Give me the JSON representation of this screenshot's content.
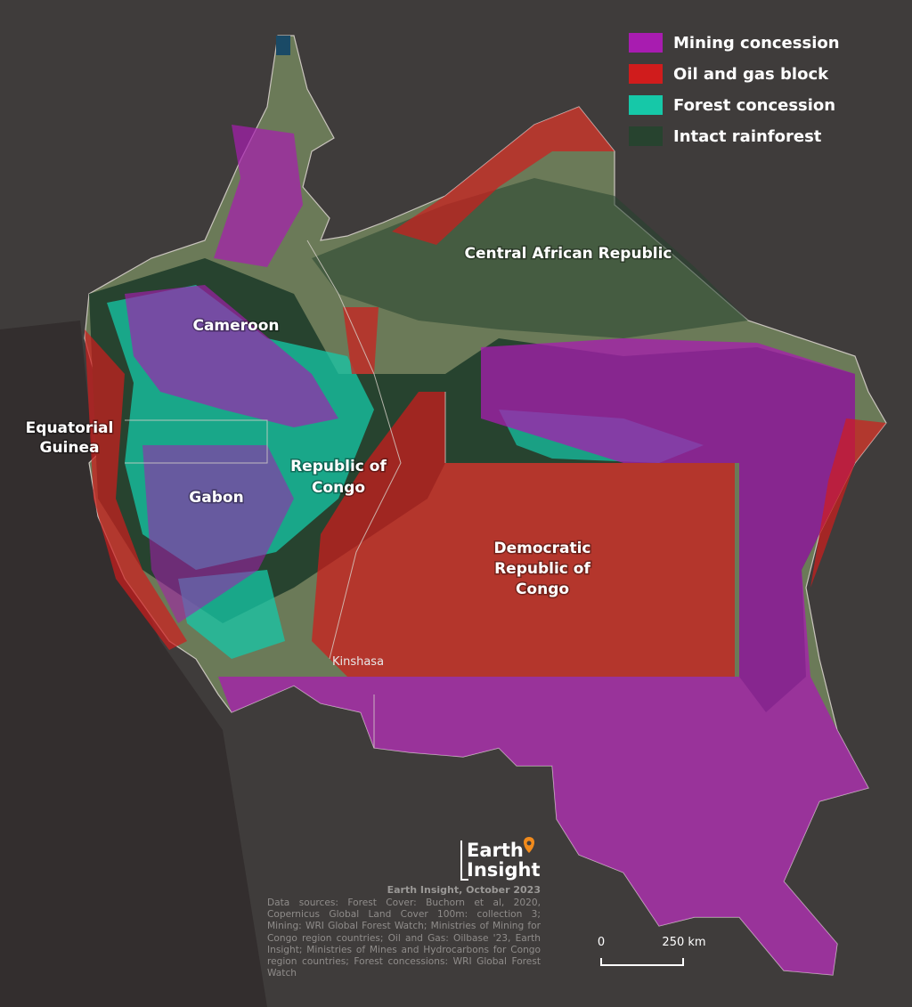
{
  "legend": [
    {
      "label": "Mining concession",
      "color": "#a81cb0"
    },
    {
      "label": "Oil and gas block",
      "color": "#d01c1c"
    },
    {
      "label": "Forest concession",
      "color": "#16c8a8"
    },
    {
      "label": "Intact rainforest",
      "color": "#27432f"
    }
  ],
  "countries": [
    {
      "lines": [
        "Central African Republic"
      ]
    },
    {
      "lines": [
        "Cameroon"
      ]
    },
    {
      "lines": [
        "Equatorial",
        "Guinea"
      ]
    },
    {
      "lines": [
        "Gabon"
      ]
    },
    {
      "lines": [
        "Republic of",
        "Congo"
      ]
    },
    {
      "lines": [
        "Democratic",
        "Republic of",
        "Congo"
      ]
    }
  ],
  "city": "Kinshasa",
  "logo": {
    "lines": [
      "Earth",
      "Insight"
    ]
  },
  "credit": "Earth Insight, October 2023",
  "sources": "Data sources: Forest Cover: Buchorn et al, 2020, Copernicus Global Land Cover 100m: collection 3; Mining: WRI Global Forest Watch; Ministries of Mining for Congo region countries; Oil and Gas: Oilbase '23, Earth Insight; Ministries of Mines and Hydrocarbons for Congo region countries; Forest concessions: WRI Global Forest Watch",
  "scale_bar": {
    "start_label": "0",
    "end_label": "250 km"
  }
}
